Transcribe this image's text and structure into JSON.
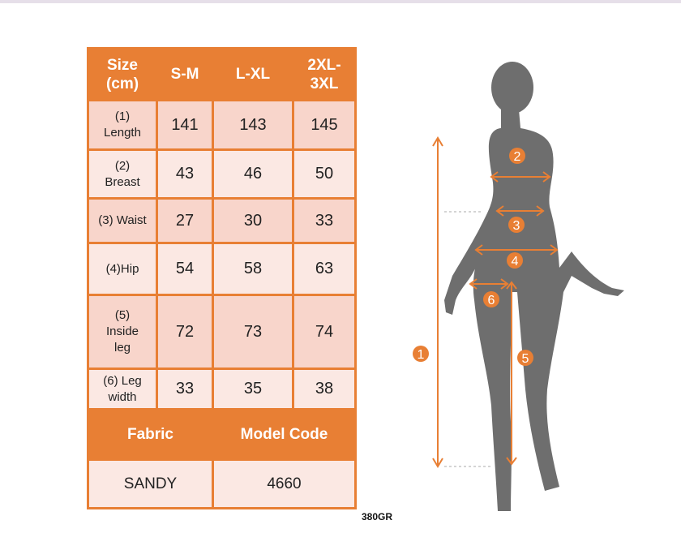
{
  "table": {
    "headers": [
      "Size\n(cm)",
      "S-M",
      "L-XL",
      "2XL-\n3XL"
    ],
    "rows": [
      {
        "label": "(1)\nLength",
        "values": [
          "141",
          "143",
          "145"
        ]
      },
      {
        "label": "(2)\nBreast",
        "values": [
          "43",
          "46",
          "50"
        ]
      },
      {
        "label": "(3) Waist",
        "values": [
          "27",
          "30",
          "33"
        ]
      },
      {
        "label": "(4)Hip",
        "values": [
          "54",
          "58",
          "63"
        ]
      },
      {
        "label": "(5)\nInside\nleg",
        "values": [
          "72",
          "73",
          "74"
        ]
      },
      {
        "label": "(6) Leg\nwidth",
        "values": [
          "33",
          "35",
          "38"
        ]
      }
    ],
    "footer_headers": [
      "Fabric",
      "Model Code"
    ],
    "footer_values": [
      "SANDY",
      "4660"
    ]
  },
  "weight": "380GR",
  "diagram": {
    "markers": [
      "1",
      "2",
      "3",
      "4",
      "5",
      "6"
    ]
  },
  "colors": {
    "accent": "#e87f34",
    "silhouette": "#6e6e6e"
  }
}
